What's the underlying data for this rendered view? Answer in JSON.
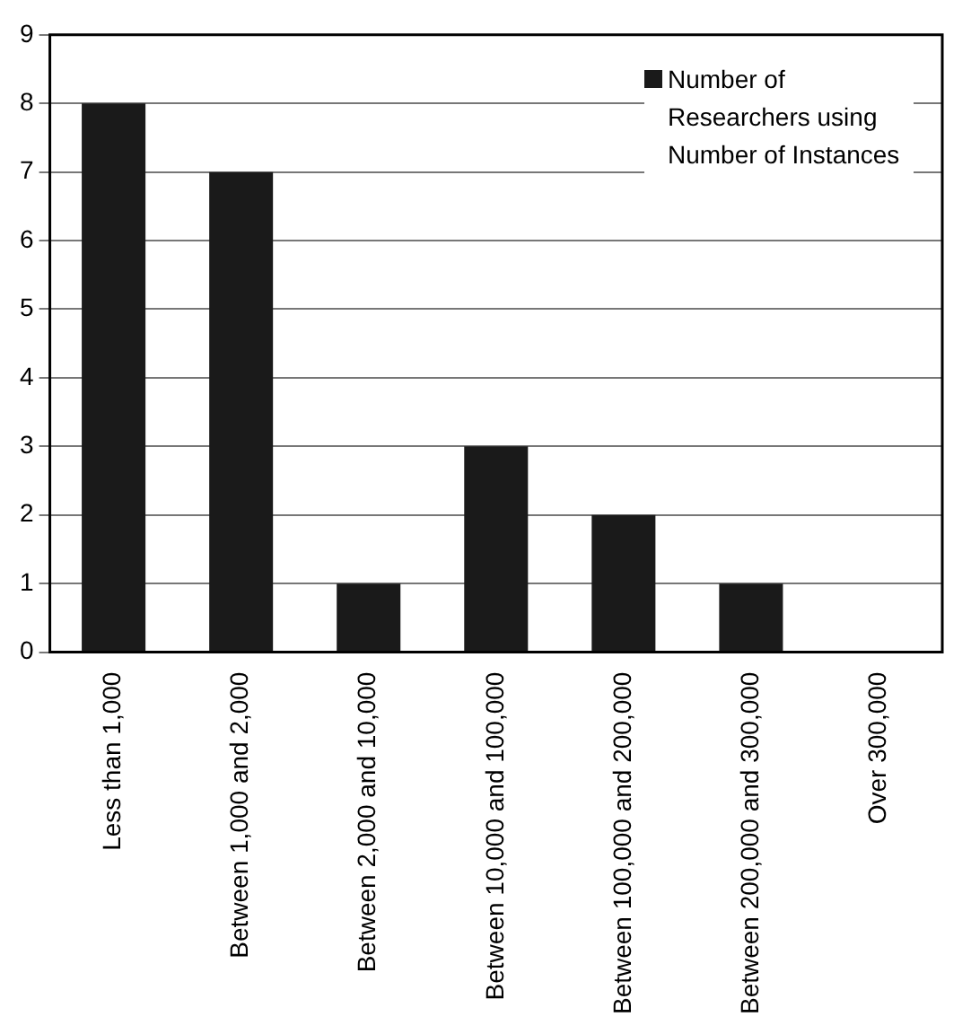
{
  "chart_data": {
    "type": "bar",
    "categories": [
      "Less than 1,000",
      "Between 1,000 and 2,000",
      "Between 2,000 and 10,000",
      "Between 10,000 and 100,000",
      "Between 100,000 and 200,000",
      "Between 200,000 and 300,000",
      "Over 300,000"
    ],
    "series": [
      {
        "name": "Number of Researchers using Number of Instances",
        "color": "#1a1a1a",
        "values": [
          8,
          7,
          1,
          3,
          2,
          1,
          0
        ]
      }
    ],
    "ylim": [
      0,
      9
    ],
    "yticks": [
      0,
      1,
      2,
      3,
      4,
      5,
      6,
      7,
      8,
      9
    ],
    "grid": "y",
    "legend": "top right"
  }
}
